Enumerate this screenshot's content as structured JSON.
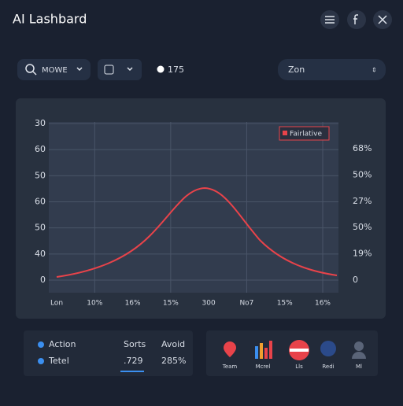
{
  "header": {
    "title": "AI Lashbard"
  },
  "toolbar": {
    "search": "MOWE",
    "counter": "175",
    "zone": "Zon"
  },
  "chart": {
    "legend": "Fairlative",
    "left_labels": [
      "30",
      "60",
      "50",
      "60",
      "50",
      "40",
      "0"
    ],
    "right_labels": [
      "68%",
      "50%",
      "27%",
      "50%",
      "19%",
      "0"
    ],
    "x_labels": [
      "Lon",
      "10%",
      "16%",
      "15%",
      "300",
      "No7",
      "15%",
      "16%"
    ]
  },
  "stats": {
    "rows": [
      {
        "name": "Action"
      },
      {
        "name": "Tetel"
      }
    ],
    "columns": [
      {
        "head": "Sorts",
        "value": ".729"
      },
      {
        "head": "Avoid",
        "value": "285%"
      }
    ]
  },
  "apps": [
    "Team",
    "Mcrel",
    "Lls",
    "Redi",
    "Ml"
  ]
}
